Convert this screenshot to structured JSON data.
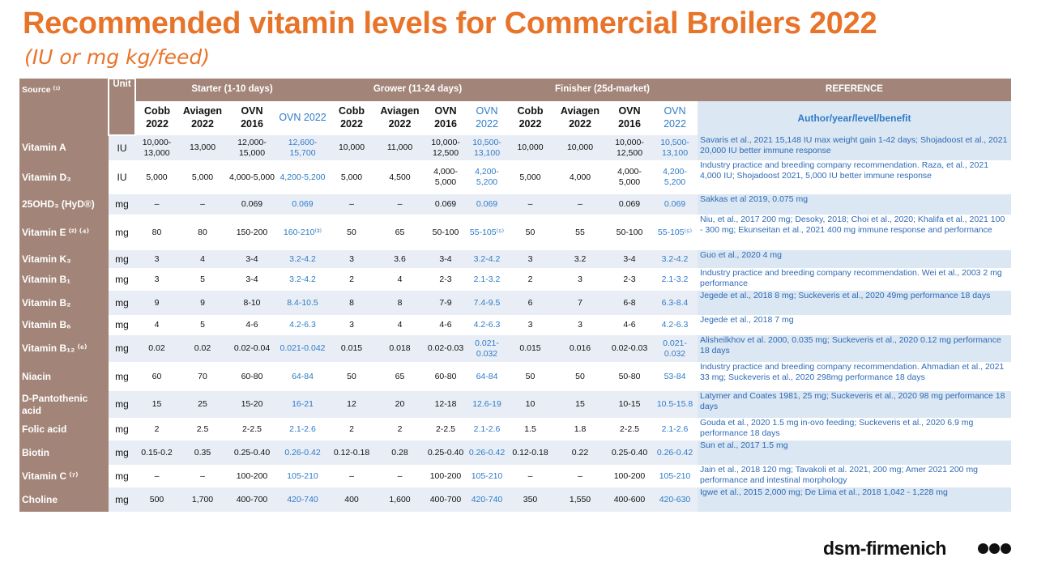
{
  "title": "Recommended vitamin levels for Commercial Broilers 2022",
  "subtitle": "(IU or mg kg/feed)",
  "header": {
    "source": "Source ⁽¹⁾",
    "unit": "Unit",
    "starter": "Starter (1-10 days)",
    "grower": "Grower (11-24 days)",
    "finisher": "Finisher (25d-market)",
    "reference": "REFERENCE",
    "author": "Author/year/level/benefit",
    "sub": [
      "Cobb 2022",
      "Aviagen 2022",
      "OVN 2016",
      "OVN 2022",
      "Cobb 2022",
      "Aviagen 2022",
      "OVN 2016",
      "OVN 2022",
      "Cobb 2022",
      "Aviagen 2022",
      "OVN 2016",
      "OVN 2022"
    ]
  },
  "rows": [
    {
      "name": "Vitamin A",
      "unit": "IU",
      "v": [
        "10,000-13,000",
        "13,000",
        "12,000-15,000",
        "12,600-15,700",
        "10,000",
        "11,000",
        "10,000-12,500",
        "10,500-13,100",
        "10,000",
        "10,000",
        "10,000-12,500",
        "10,500-13,100"
      ],
      "ref": "Savaris et al., 2021 15,148 IU max weight gain 1-42 days; Shojadoost et al., 2021 20,000 IU better immune response"
    },
    {
      "name": "Vitamin D₃",
      "unit": "IU",
      "v": [
        "5,000",
        "5,000",
        "4,000-5,000",
        "4,200-5,200",
        "5,000",
        "4,500",
        "4,000-5,000",
        "4,200-5,200",
        "5,000",
        "4,000",
        "4,000-5,000",
        "4,200-5,200"
      ],
      "ref": "Industry practice and breeding company recommendation. Raza, et al., 2021 4,000 IU; Shojadoost 2021, 5,000 IU better immune response"
    },
    {
      "name": "25OHD₃ (HyD®)",
      "unit": "mg",
      "v": [
        "–",
        "–",
        "0.069",
        "0.069",
        "–",
        "–",
        "0.069",
        "0.069",
        "–",
        "–",
        "0.069",
        "0.069"
      ],
      "ref": "Sakkas et al 2019, 0.075 mg"
    },
    {
      "name": "Vitamin E ⁽²⁾ ⁽⁴⁾",
      "unit": "mg",
      "v": [
        "80",
        "80",
        "150-200",
        "160-210⁽³⁾",
        "50",
        "65",
        "50-100",
        "55-105⁽⁵⁾",
        "50",
        "55",
        "50-100",
        "55-105⁽⁵⁾"
      ],
      "ref": "Niu, et al., 2017 200 mg; Desoky, 2018; Choi et al., 2020; Khalifa et al., 2021 100 - 300 mg; Ekunseitan et al., 2021 400 mg immune response and performance"
    },
    {
      "name": "Vitamin K₃",
      "unit": "mg",
      "v": [
        "3",
        "4",
        "3-4",
        "3.2-4.2",
        "3",
        "3.6",
        "3-4",
        "3.2-4.2",
        "3",
        "3.2",
        "3-4",
        "3.2-4.2"
      ],
      "ref": "Guo et al., 2020 4 mg"
    },
    {
      "name": "Vitamin B₁",
      "unit": "mg",
      "v": [
        "3",
        "5",
        "3-4",
        "3.2-4.2",
        "2",
        "4",
        "2-3",
        "2.1-3.2",
        "2",
        "3",
        "2-3",
        "2.1-3.2"
      ],
      "ref": "Industry practice and breeding company recommendation. Wei et al., 2003 2 mg performance"
    },
    {
      "name": "Vitamin B₂",
      "unit": "mg",
      "v": [
        "9",
        "9",
        "8-10",
        "8.4-10.5",
        "8",
        "8",
        "7-9",
        "7.4-9.5",
        "6",
        "7",
        "6-8",
        "6.3-8.4"
      ],
      "ref": "Jegede et al., 2018 8 mg; Suckeveris et al., 2020 49mg performance 18 days"
    },
    {
      "name": "Vitamin B₆",
      "unit": "mg",
      "v": [
        "4",
        "5",
        "4-6",
        "4.2-6.3",
        "3",
        "4",
        "4-6",
        "4.2-6.3",
        "3",
        "3",
        "4-6",
        "4.2-6.3"
      ],
      "ref": "Jegede et al., 2018 7 mg"
    },
    {
      "name": "Vitamin B₁₂ ⁽⁶⁾",
      "unit": "mg",
      "v": [
        "0.02",
        "0.02",
        "0.02-0.04",
        "0.021-0.042",
        "0.015",
        "0.018",
        "0.02-0.03",
        "0.021-0.032",
        "0.015",
        "0.016",
        "0.02-0.03",
        "0.021-0.032"
      ],
      "ref": "Alisheilkhov et al. 2000, 0.035 mg; Suckeveris et al., 2020 0.12 mg performance 18 days"
    },
    {
      "name": "Niacin",
      "unit": "mg",
      "v": [
        "60",
        "70",
        "60-80",
        "64-84",
        "50",
        "65",
        "60-80",
        "64-84",
        "50",
        "50",
        "50-80",
        "53-84"
      ],
      "ref": "Industry practice and breeding company recommendation. Ahmadian et al., 2021 33 mg; Suckeveris et al., 2020 298mg performance 18 days"
    },
    {
      "name": "D-Pantothenic acid",
      "unit": "mg",
      "v": [
        "15",
        "25",
        "15-20",
        "16-21",
        "12",
        "20",
        "12-18",
        "12.6-19",
        "10",
        "15",
        "10-15",
        "10.5-15.8"
      ],
      "ref": "Latymer and Coates 1981, 25 mg; Suckeveris et al., 2020 98 mg performance 18 days"
    },
    {
      "name": "Folic acid",
      "unit": "mg",
      "v": [
        "2",
        "2.5",
        "2-2.5",
        "2.1-2.6",
        "2",
        "2",
        "2-2.5",
        "2.1-2.6",
        "1.5",
        "1.8",
        "2-2.5",
        "2.1-2.6"
      ],
      "ref": "Gouda et al., 2020 1.5 mg in-ovo feeding; Suckeveris et al., 2020 6.9 mg performance 18 days"
    },
    {
      "name": "Biotin",
      "unit": "mg",
      "v": [
        "0.15-0.2",
        "0.35",
        "0.25-0.40",
        "0.26-0.42",
        "0.12-0.18",
        "0.28",
        "0.25-0.40",
        "0.26-0.42",
        "0.12-0.18",
        "0.22",
        "0.25-0.40",
        "0.26-0.42"
      ],
      "ref": "Sun et al., 2017 1.5 mg"
    },
    {
      "name": "Vitamin C ⁽⁷⁾",
      "unit": "mg",
      "v": [
        "–",
        "–",
        "100-200",
        "105-210",
        "–",
        "–",
        "100-200",
        "105-210",
        "–",
        "–",
        "100-200",
        "105-210"
      ],
      "ref": "Jain et al., 2018 120 mg; Tavakoli et al. 2021, 200 mg; Amer 2021 200 mg performance and intestinal morphology"
    },
    {
      "name": "Choline",
      "unit": "mg",
      "v": [
        "500",
        "1,700",
        "400-700",
        "420-740",
        "400",
        "1,600",
        "400-700",
        "420-740",
        "350",
        "1,550",
        "400-600",
        "420-630"
      ],
      "ref": "Igwe et al., 2015 2,000 mg; De Lima et al., 2018 1,042 - 1,228 mg"
    }
  ],
  "brand": "dsm-firmenich"
}
